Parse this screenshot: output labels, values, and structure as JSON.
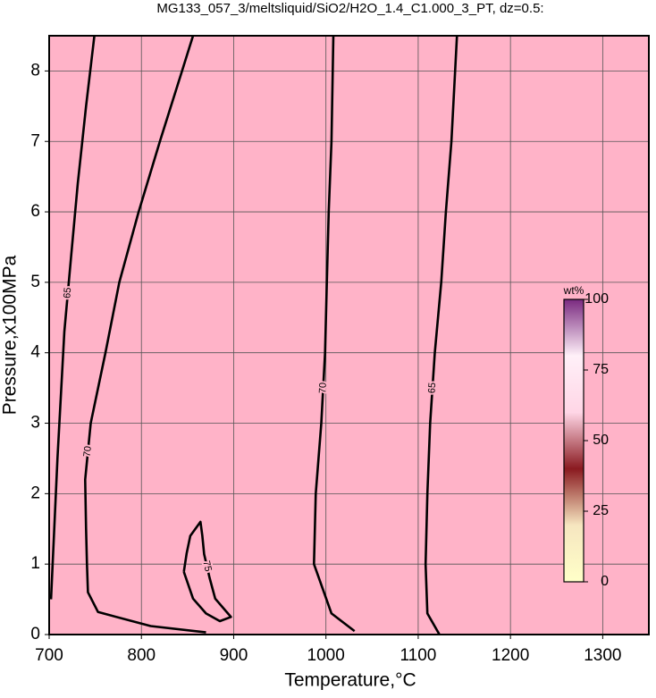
{
  "chart_data": {
    "type": "contour",
    "title": "MG133_057_3/meltsliquid/SiO2/H2O_1.4_C1.000_3_PT, dz=0.5:",
    "xlabel": "Temperature,°C",
    "ylabel": "Pressure,x100MPa",
    "xlim": [
      700,
      1350
    ],
    "ylim": [
      0,
      8.5
    ],
    "xticks": [
      700,
      800,
      900,
      1000,
      1100,
      1200,
      1300
    ],
    "yticks": [
      0,
      1,
      2,
      3,
      4,
      5,
      6,
      7,
      8
    ],
    "grid": true,
    "fill_color": "#ffb3c8",
    "line_color": "#000000",
    "contours": [
      {
        "level": 65,
        "x": [
          702,
          709,
          716.5,
          724,
          731,
          740,
          749
        ],
        "y": [
          0.5,
          2.5,
          4.3,
          5.4,
          6.4,
          7.5,
          8.5
        ]
      },
      {
        "level": 70,
        "x": [
          870,
          810,
          753,
          742,
          741,
          740,
          739,
          745,
          761,
          776,
          797,
          820,
          844,
          856
        ],
        "y": [
          0.03,
          0.12,
          0.32,
          0.6,
          1,
          1.5,
          2.2,
          3,
          4,
          5,
          6,
          7,
          8,
          8.5
        ]
      },
      {
        "level": 70,
        "x": [
          1031,
          1006,
          987,
          989,
          995,
          999,
          1001,
          1003,
          1006,
          1008
        ],
        "y": [
          0.05,
          0.3,
          1,
          2,
          3,
          4,
          5,
          6,
          7,
          8.5
        ]
      },
      {
        "level": 65,
        "x": [
          1123,
          1110,
          1108,
          1110,
          1113,
          1118,
          1125,
          1130,
          1136,
          1142
        ],
        "y": [
          0,
          0.3,
          1,
          2,
          3,
          4,
          5,
          6,
          7,
          8.5
        ]
      },
      {
        "level": 75,
        "x": [
          846,
          849,
          853,
          864,
          866,
          868,
          874,
          880,
          897,
          885,
          870,
          856,
          846
        ],
        "y": [
          0.89,
          1.15,
          1.4,
          1.6,
          1.4,
          1.14,
          0.8,
          0.51,
          0.25,
          0.19,
          0.3,
          0.51,
          0.89
        ]
      }
    ],
    "colorbar": {
      "label": "wt%",
      "lim": [
        0,
        100
      ],
      "ticks": [
        0,
        25,
        50,
        75,
        100
      ],
      "colors": [
        "#ffffc8",
        "#f6e6c0",
        "#8a1a20",
        "#ffd6e6",
        "#fff0f8",
        "#7a2a80"
      ]
    }
  }
}
